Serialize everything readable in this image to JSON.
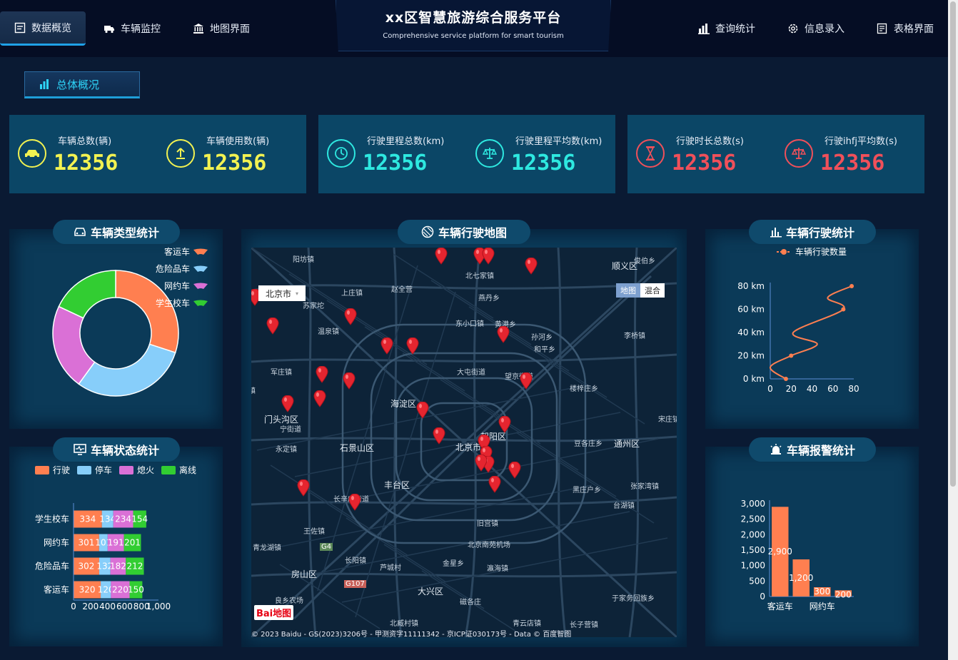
{
  "header": {
    "title": "xx区智慧旅游综合服务平台",
    "subtitle": "Comprehensive service platform for smart tourism",
    "left_nav": [
      {
        "label": "数据概览",
        "icon": "dashboard-icon",
        "active": true
      },
      {
        "label": "车辆监控",
        "icon": "truck-icon",
        "active": false
      },
      {
        "label": "地图界面",
        "icon": "bank-icon",
        "active": false
      }
    ],
    "right_nav": [
      {
        "label": "查询统计",
        "icon": "bar-chart-icon"
      },
      {
        "label": "信息录入",
        "icon": "gear-icon"
      },
      {
        "label": "表格界面",
        "icon": "table-icon"
      }
    ]
  },
  "section": {
    "label": "总体概况"
  },
  "kpis": [
    {
      "label": "车辆总数(辆)",
      "value": "12356",
      "color": "#f2f251",
      "icon": "car-icon"
    },
    {
      "label": "车辆使用数(辆)",
      "value": "12356",
      "color": "#f2f251",
      "icon": "upload-icon"
    },
    {
      "label": "行驶里程总数(km)",
      "value": "12356",
      "color": "#2ee8e0",
      "icon": "timer-icon"
    },
    {
      "label": "行驶里程平均数(km)",
      "value": "12356",
      "color": "#2ee8e0",
      "icon": "scale-icon"
    },
    {
      "label": "行驶时长总数(s)",
      "value": "12356",
      "color": "#f0505a",
      "icon": "hourglass-icon"
    },
    {
      "label": "行驶ihfj平均数(s)",
      "value": "12356",
      "color": "#f0505a",
      "icon": "scale-icon"
    }
  ],
  "panels": {
    "vehicle_type": {
      "title": "车辆类型统计",
      "icon": "car-icon"
    },
    "vehicle_status": {
      "title": "车辆状态统计",
      "icon": "monitor-icon"
    },
    "map": {
      "title": "车辆行驶地图",
      "icon": "globe-icon"
    },
    "driving": {
      "title": "车辆行驶统计",
      "icon": "bar-chart-icon"
    },
    "alarm": {
      "title": "车辆报警统计",
      "icon": "alarm-icon"
    }
  },
  "map": {
    "city": "北京市",
    "type_buttons": [
      "地图",
      "混合"
    ],
    "copyright": "© 2023 Baidu - GS(2023)3206号 - 甲测资字11111342 - 京ICP证030173号 - Data © 百度智图",
    "logo": "Bai地图",
    "places": [
      "阳坊镇",
      "顺义区",
      "北七家镇",
      "上庄镇",
      "燕丹乡",
      "赵全营",
      "东小口镇",
      "黄港乡",
      "苏家坨",
      "温泉镇",
      "孙河乡",
      "李桥镇",
      "和平乡",
      "军庄镇",
      "大屯街道",
      "望京街道",
      "楼梓庄乡",
      "山镇",
      "门头沟区",
      "宁街道",
      "海淀区",
      "朝阳区",
      "宋庄镇",
      "永定镇",
      "石景山区",
      "北京市",
      "豆各庄乡",
      "通州区",
      "丰台区",
      "黑庄户乡",
      "张家湾镇",
      "长辛店街道",
      "台湖镇",
      "王佐镇",
      "旧宫镇",
      "青龙湖镇",
      "北京南苑机场",
      "长阳镇",
      "金星乡",
      "瀛海镇",
      "芦城村",
      "房山区",
      "大兴区",
      "磁各庄",
      "于家务回族乡",
      "良乡农场",
      "北臧村镇",
      "青云店镇",
      "长子营镇",
      "俊伯乡",
      "G4",
      "G107"
    ]
  },
  "chart_data": [
    {
      "type": "pie",
      "title": "车辆类型统计",
      "categories": [
        "客运车",
        "危险品车",
        "网约车",
        "学生校车"
      ],
      "values": [
        30,
        30,
        22,
        18
      ],
      "colors": [
        "#ff7f50",
        "#87cefa",
        "#da70d6",
        "#32cd32"
      ],
      "legend_position": "top-right"
    },
    {
      "type": "bar",
      "title": "车辆状态统计",
      "orientation": "horizontal",
      "stacked": true,
      "categories": [
        "客运车",
        "危险品车",
        "网约车",
        "学生校车"
      ],
      "series": [
        {
          "name": "行驶",
          "values": [
            320,
            302,
            301,
            334
          ],
          "color": "#ff7f50"
        },
        {
          "name": "停车",
          "values": [
            120,
            132,
            101,
            134
          ],
          "color": "#87cefa"
        },
        {
          "name": "熄火",
          "values": [
            220,
            182,
            191,
            234
          ],
          "color": "#da70d6"
        },
        {
          "name": "离线",
          "values": [
            150,
            212,
            201,
            154
          ],
          "color": "#32cd32"
        }
      ],
      "xlim": [
        0,
        1000
      ],
      "xticks": [
        "0",
        "200",
        "400",
        "600",
        "800",
        "1,000"
      ]
    },
    {
      "type": "line",
      "title": "车辆行驶统计",
      "series": [
        {
          "name": "车辆行驶数量",
          "color": "#ff7f50",
          "x": [
            15,
            0,
            20,
            45,
            22,
            70,
            55,
            78
          ],
          "y": [
            0,
            10,
            20,
            30,
            40,
            60,
            70,
            80
          ]
        }
      ],
      "xlim": [
        0,
        80
      ],
      "ylim": [
        0,
        80
      ],
      "xticks": [
        "0",
        "20",
        "40",
        "60",
        "80"
      ],
      "yticks": [
        "0 km",
        "20 km",
        "40 km",
        "60 km",
        "80 km"
      ],
      "legend_position": "top"
    },
    {
      "type": "bar",
      "title": "车辆报警统计",
      "categories": [
        "客运车",
        "",
        "网约车",
        ""
      ],
      "values": [
        2900,
        1200,
        300,
        200
      ],
      "value_labels": [
        "2,900",
        "1,200",
        "300",
        "200"
      ],
      "ylim": [
        0,
        3000
      ],
      "yticks": [
        "0",
        "500",
        "1,000",
        "1,500",
        "2,000",
        "2,500",
        "3,000"
      ],
      "color": "#ff7f50"
    }
  ]
}
